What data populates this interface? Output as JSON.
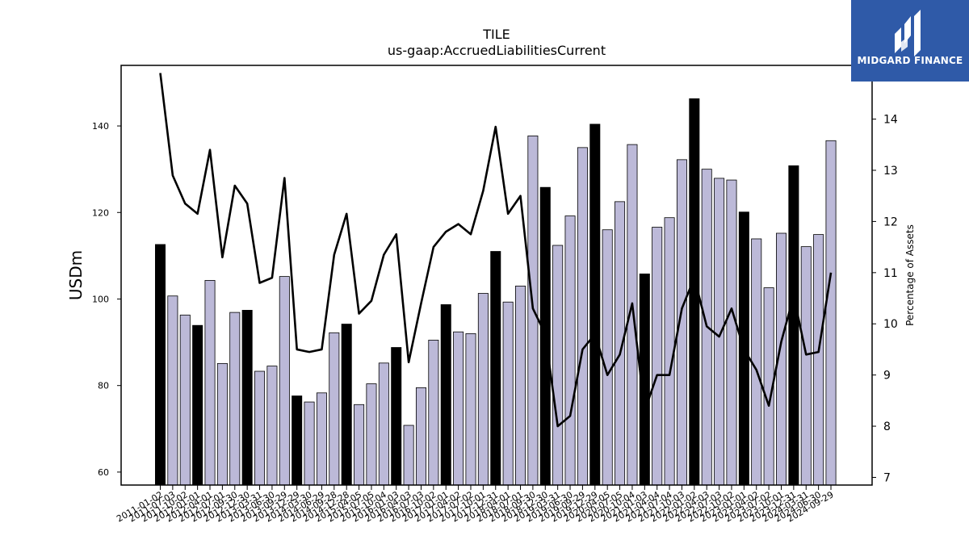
{
  "chart_data": {
    "type": "bar",
    "title": "TILE",
    "subtitle": "us-gaap:AccruedLiabilitiesCurrent",
    "ylabel": "USDm",
    "y2label": "Percentage of Assets",
    "ylim": [
      57,
      154
    ],
    "y2lim": [
      6.85,
      15.05
    ],
    "yticks": [
      60,
      80,
      100,
      120,
      140
    ],
    "y2ticks": [
      7,
      8,
      9,
      10,
      11,
      12,
      13,
      14
    ],
    "categories": [
      "2011-01-02",
      "2011-07-03",
      "2011-10-02",
      "2012-01-01",
      "2012-04-01",
      "2012-07-01",
      "2012-09-30",
      "2012-12-30",
      "2013-03-31",
      "2013-06-30",
      "2013-09-29",
      "2013-12-29",
      "2014-03-30",
      "2014-06-29",
      "2014-09-28",
      "2014-12-28",
      "2015-04-05",
      "2015-07-05",
      "2015-10-04",
      "2016-01-03",
      "2016-04-03",
      "2016-07-03",
      "2016-10-02",
      "2017-01-01",
      "2017-04-02",
      "2017-07-02",
      "2017-10-01",
      "2017-12-31",
      "2018-04-01",
      "2018-07-01",
      "2018-09-30",
      "2018-12-30",
      "2019-03-31",
      "2019-06-30",
      "2019-09-29",
      "2019-12-29",
      "2020-04-05",
      "2020-07-05",
      "2020-10-04",
      "2021-01-03",
      "2021-04-04",
      "2021-07-04",
      "2021-10-03",
      "2022-01-02",
      "2022-04-03",
      "2022-07-03",
      "2022-10-02",
      "2023-01-01",
      "2023-04-02",
      "2023-07-02",
      "2023-10-01",
      "2023-12-31",
      "2024-03-31",
      "2024-06-30",
      "2024-09-29"
    ],
    "series": [
      {
        "type": "bar",
        "values": [
          112.6,
          100.7,
          96.3,
          93.9,
          104.3,
          85.1,
          96.9,
          97.4,
          83.3,
          84.5,
          105.2,
          77.6,
          76.2,
          78.3,
          92.2,
          94.2,
          75.6,
          80.4,
          85.2,
          88.8,
          70.8,
          79.5,
          90.5,
          98.7,
          92.4,
          92.0,
          101.3,
          111.0,
          99.3,
          103.0,
          137.7,
          125.8,
          112.4,
          119.2,
          135.0,
          140.4,
          116.0,
          122.5,
          135.7,
          105.8,
          116.6,
          118.8,
          132.2,
          146.3,
          130.0,
          127.9,
          127.5,
          120.1,
          113.9,
          102.6,
          115.2,
          130.8,
          112.1,
          114.9,
          136.6
        ],
        "highlight": [
          true,
          false,
          false,
          true,
          false,
          false,
          false,
          true,
          false,
          false,
          false,
          true,
          false,
          false,
          false,
          true,
          false,
          false,
          false,
          true,
          false,
          false,
          false,
          true,
          false,
          false,
          false,
          true,
          false,
          false,
          false,
          true,
          false,
          false,
          false,
          true,
          false,
          false,
          false,
          true,
          false,
          false,
          false,
          true,
          false,
          false,
          false,
          true,
          false,
          false,
          false,
          true,
          false,
          false,
          false
        ]
      },
      {
        "type": "line",
        "axis": "right",
        "values": [
          14.9,
          12.9,
          12.35,
          12.15,
          13.4,
          11.3,
          12.7,
          12.35,
          10.8,
          10.9,
          12.85,
          9.5,
          9.45,
          9.5,
          11.35,
          12.15,
          10.2,
          10.45,
          11.35,
          11.75,
          9.25,
          10.4,
          11.5,
          11.8,
          11.95,
          11.75,
          12.6,
          13.85,
          12.15,
          12.5,
          10.3,
          9.8,
          8.0,
          8.2,
          9.5,
          9.8,
          9.0,
          9.4,
          10.4,
          8.3,
          9.0,
          9.0,
          10.3,
          10.9,
          9.95,
          9.75,
          10.3,
          9.5,
          9.1,
          8.4,
          9.65,
          10.55,
          9.4,
          9.45,
          11.0
        ]
      }
    ],
    "colors": {
      "bar": "#bcb9d8",
      "bar_highlight": "#000000",
      "line": "#000000"
    },
    "grid": false
  },
  "logo": {
    "text": "MIDGARD FINANCE",
    "background": "#2f5aa8"
  }
}
